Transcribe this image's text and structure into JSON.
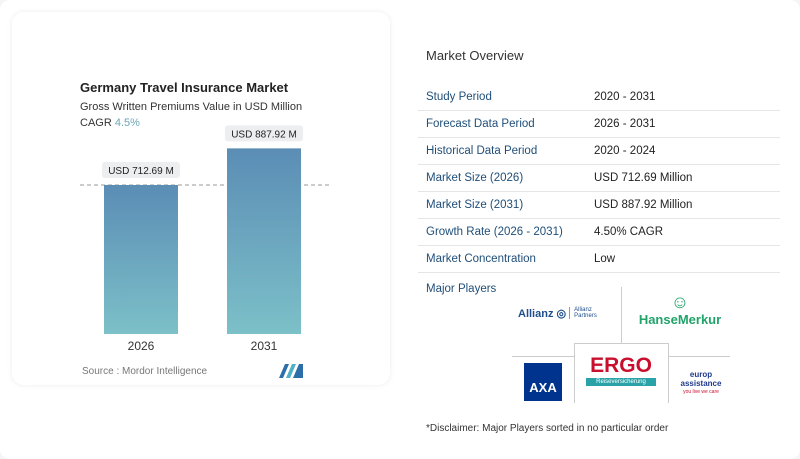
{
  "chart_card": {
    "title": "Germany Travel Insurance Market",
    "subtitle": "Gross Written Premiums Value in USD Million",
    "cagr_label": "CAGR",
    "cagr_value": "4.5%",
    "source": "Source :  Mordor Intelligence"
  },
  "chart_data": {
    "type": "bar",
    "categories": [
      "2026",
      "2031"
    ],
    "values": [
      712.69,
      887.92
    ],
    "data_labels": [
      "USD 712.69 M",
      "USD 887.92 M"
    ],
    "ylim": [
      0,
      900
    ],
    "grid": false,
    "reference_line": 712.69,
    "colors": {
      "bar_top": "#5b8db5",
      "bar_bottom": "#7cc0c8"
    }
  },
  "overview": {
    "title": "Market Overview",
    "rows": [
      {
        "label": "Study Period",
        "value": "2020 - 2031"
      },
      {
        "label": "Forecast Data Period",
        "value": "2026 - 2031"
      },
      {
        "label": "Historical Data Period",
        "value": "2020 - 2024"
      },
      {
        "label": "Market Size (2026)",
        "value": "USD 712.69 Million"
      },
      {
        "label": "Market Size (2031)",
        "value": "USD 887.92 Million"
      },
      {
        "label": "Growth Rate (2026 - 2031)",
        "value": "4.50% CAGR"
      },
      {
        "label": "Market Concentration",
        "value": "Low"
      }
    ]
  },
  "players": {
    "title": "Major Players",
    "logos": [
      "Allianz",
      "Allianz Partners",
      "HanseMerkur",
      "AXA",
      "ERGO",
      "Reiseversicherung",
      "europ assistance",
      "you live we care"
    ]
  },
  "disclaimer": "*Disclaimer: Major Players sorted in no particular order"
}
